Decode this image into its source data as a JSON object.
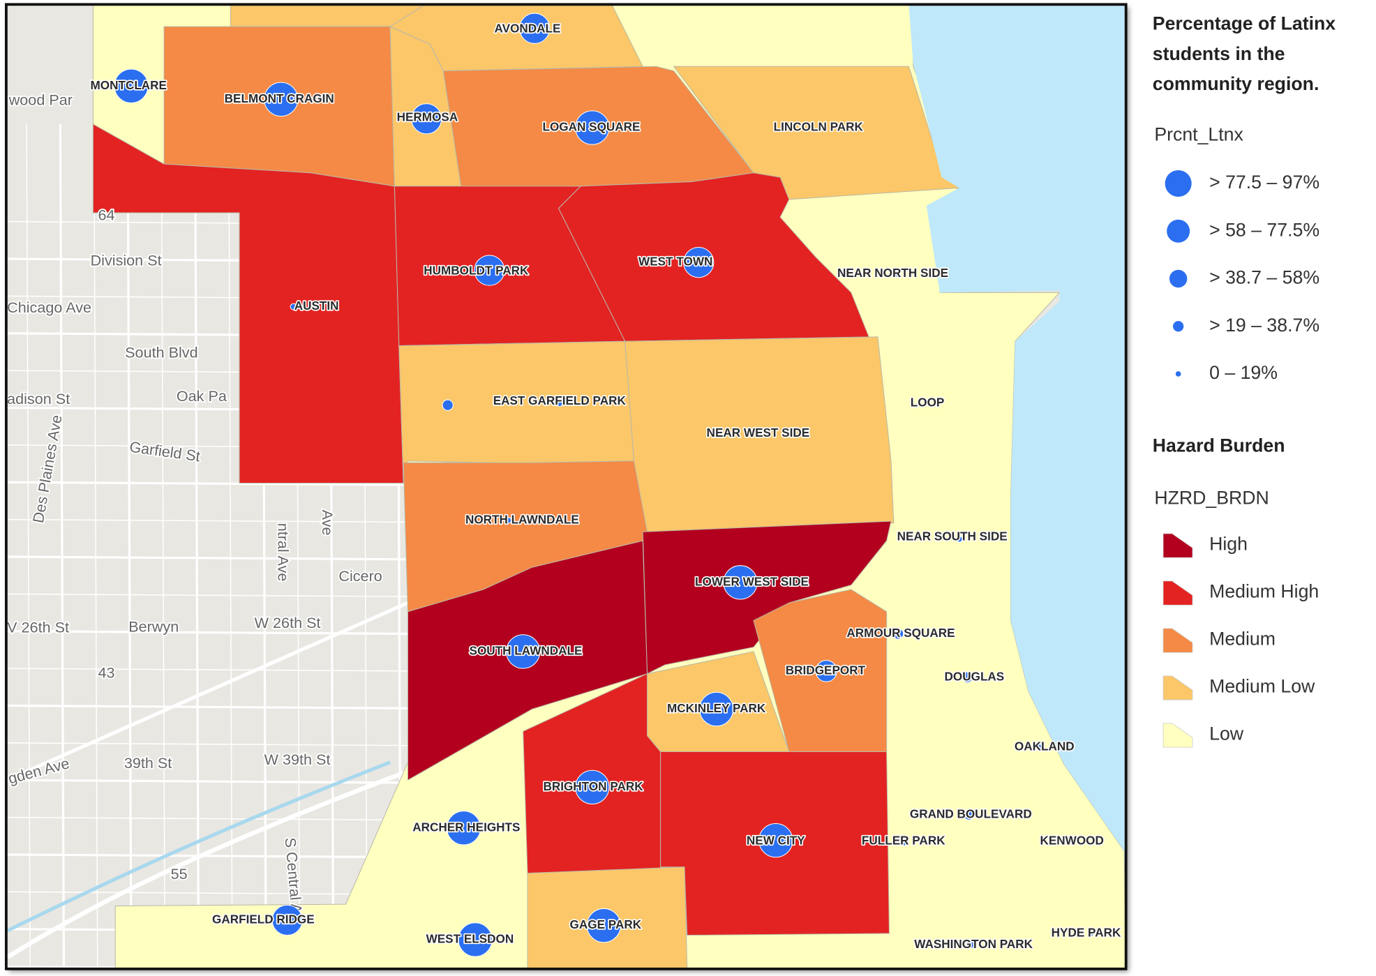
{
  "legend": {
    "latinx_title": [
      "Percentage of Latinx",
      "students in the",
      "community region."
    ],
    "latinx_field": "Prcnt_Ltnx",
    "latinx_classes": [
      "> 77.5 – 97%",
      "> 58 – 77.5%",
      "> 38.7 – 58%",
      "> 19 – 38.7%",
      "0 – 19%"
    ],
    "circle_color": "#2b6ff0",
    "hazard_title": "Hazard Burden",
    "hazard_field": "HZRD_BRDN",
    "hazard_classes": [
      {
        "label": "High",
        "color": "#b2001e"
      },
      {
        "label": "Medium High",
        "color": "#e32322"
      },
      {
        "label": "Medium",
        "color": "#f48a45"
      },
      {
        "label": "Medium Low",
        "color": "#fbc769"
      },
      {
        "label": "Low",
        "color": "#ffffbf"
      }
    ]
  },
  "communities": [
    {
      "name": "MONTCLARE",
      "latinx_class": 0
    },
    {
      "name": "BELMONT CRAGIN",
      "latinx_class": 0
    },
    {
      "name": "HERMOSA",
      "latinx_class": 1
    },
    {
      "name": "AVONDALE",
      "latinx_class": 1
    },
    {
      "name": "LOGAN SQUARE",
      "latinx_class": 0
    },
    {
      "name": "LINCOLN PARK",
      "latinx_class": 4
    },
    {
      "name": "HUMBOLDT PARK",
      "latinx_class": 1
    },
    {
      "name": "WEST TOWN",
      "latinx_class": 1
    },
    {
      "name": "AUSTIN",
      "latinx_class": 4
    },
    {
      "name": "NEAR NORTH SIDE",
      "latinx_class": 4
    },
    {
      "name": "EAST GARFIELD PARK",
      "latinx_class": 4
    },
    {
      "name": null,
      "latinx_class": 3
    },
    {
      "name": "LOOP",
      "latinx_class": 4
    },
    {
      "name": "NEAR WEST SIDE",
      "latinx_class": 4
    },
    {
      "name": "NORTH LAWNDALE",
      "latinx_class": 4
    },
    {
      "name": "NEAR SOUTH SIDE",
      "latinx_class": 4
    },
    {
      "name": "LOWER WEST SIDE",
      "latinx_class": 0
    },
    {
      "name": "ARMOUR SQUARE",
      "latinx_class": 3
    },
    {
      "name": "SOUTH LAWNDALE",
      "latinx_class": 0
    },
    {
      "name": "BRIDGEPORT",
      "latinx_class": 2
    },
    {
      "name": "DOUGLAS",
      "latinx_class": 3
    },
    {
      "name": "MCKINLEY PARK",
      "latinx_class": 0
    },
    {
      "name": "OAKLAND",
      "latinx_class": 4
    },
    {
      "name": "BRIGHTON PARK",
      "latinx_class": 0
    },
    {
      "name": "GRAND BOULEVARD",
      "latinx_class": 3
    },
    {
      "name": "ARCHER HEIGHTS",
      "latinx_class": 0
    },
    {
      "name": "NEW CITY",
      "latinx_class": 0
    },
    {
      "name": "FULLER PARK",
      "latinx_class": 3
    },
    {
      "name": "KENWOOD",
      "latinx_class": 4
    },
    {
      "name": "GARFIELD RIDGE",
      "latinx_class": 1
    },
    {
      "name": "WEST ELSDON",
      "latinx_class": 0
    },
    {
      "name": "GAGE PARK",
      "latinx_class": 0
    },
    {
      "name": "WASHINGTON PARK",
      "latinx_class": 4
    },
    {
      "name": "HYDE PARK",
      "latinx_class": 4
    }
  ],
  "base_map_labels": [
    "wood Par",
    "Division St",
    "Chicago Ave",
    "South Blvd",
    "adison St",
    "Oak Pa",
    "Garfield St",
    "Des Plaines Ave",
    "ntral Ave",
    "Ave",
    "Cicero",
    "V 26th St",
    "Berwyn",
    "W 26th St",
    "43",
    "64",
    "gden Ave",
    "39th St",
    "W 39th St",
    "S Central Av",
    "55"
  ]
}
